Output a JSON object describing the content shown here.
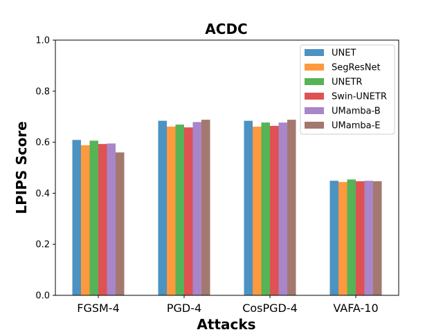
{
  "chart_data": {
    "type": "bar",
    "title": "ACDC",
    "xlabel": "Attacks",
    "ylabel": "LPIPS Score",
    "categories": [
      "FGSM-4",
      "PGD-4",
      "CosPGD-4",
      "VAFA-10"
    ],
    "ylim": [
      0,
      1.0
    ],
    "yticks": [
      "0.0",
      "0.2",
      "0.4",
      "0.6",
      "0.8",
      "1.0"
    ],
    "legend_position": "top-right",
    "series": [
      {
        "name": "UNET",
        "color": "#1f77b4",
        "values": [
          0.609,
          0.684,
          0.684,
          0.449
        ]
      },
      {
        "name": "SegResNet",
        "color": "#ff7f0e",
        "values": [
          0.588,
          0.661,
          0.661,
          0.444
        ]
      },
      {
        "name": "UNETR",
        "color": "#2ca02c",
        "values": [
          0.606,
          0.669,
          0.677,
          0.454
        ]
      },
      {
        "name": "Swin-UNETR",
        "color": "#d62728",
        "values": [
          0.593,
          0.658,
          0.664,
          0.447
        ]
      },
      {
        "name": "UMamba-B",
        "color": "#9467bd",
        "values": [
          0.595,
          0.679,
          0.677,
          0.449
        ]
      },
      {
        "name": "UMamba-E",
        "color": "#8c564b",
        "values": [
          0.56,
          0.688,
          0.688,
          0.447
        ]
      }
    ]
  }
}
